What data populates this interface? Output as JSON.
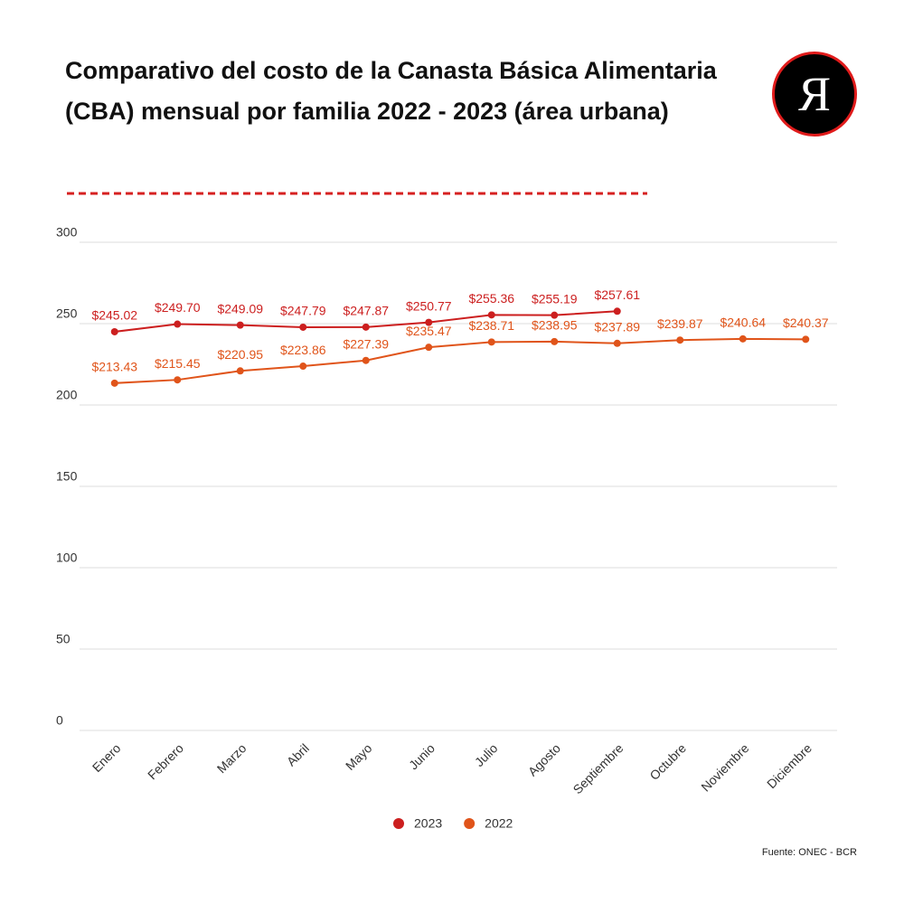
{
  "logo": "Я",
  "chart_data": {
    "type": "line",
    "title": "Comparativo del costo de la Canasta Básica Alimentaria (CBA) mensual por familia 2022 - 2023 (área urbana)",
    "source": "Fuente: ONEC - BCR",
    "categories": [
      "Enero",
      "Febrero",
      "Marzo",
      "Abril",
      "Mayo",
      "Junio",
      "Julio",
      "Agosto",
      "Septiembre",
      "Octubre",
      "Noviembre",
      "Diciembre"
    ],
    "series": [
      {
        "name": "2023",
        "color": "#cc1f1f",
        "values": [
          245.02,
          249.7,
          249.09,
          247.79,
          247.87,
          250.77,
          255.36,
          255.19,
          257.61,
          null,
          null,
          null
        ],
        "value_labels": [
          "$245.02",
          "$249.70",
          "$249.09",
          "$247.79",
          "$247.87",
          "$250.77",
          "$255.36",
          "$255.19",
          "$257.61",
          null,
          null,
          null
        ]
      },
      {
        "name": "2022",
        "color": "#e0541a",
        "values": [
          213.43,
          215.45,
          220.95,
          223.86,
          227.39,
          235.47,
          238.71,
          238.95,
          237.89,
          239.87,
          240.64,
          240.37
        ],
        "value_labels": [
          "$213.43",
          "$215.45",
          "$220.95",
          "$223.86",
          "$227.39",
          "$235.47",
          "$238.71",
          "$238.95",
          "$237.89",
          "$239.87",
          "$240.64",
          "$240.37"
        ]
      }
    ],
    "ylim": [
      0,
      300
    ],
    "yticks": [
      0,
      50,
      100,
      150,
      200,
      250,
      300
    ],
    "grid": true,
    "legend": "bottom"
  }
}
